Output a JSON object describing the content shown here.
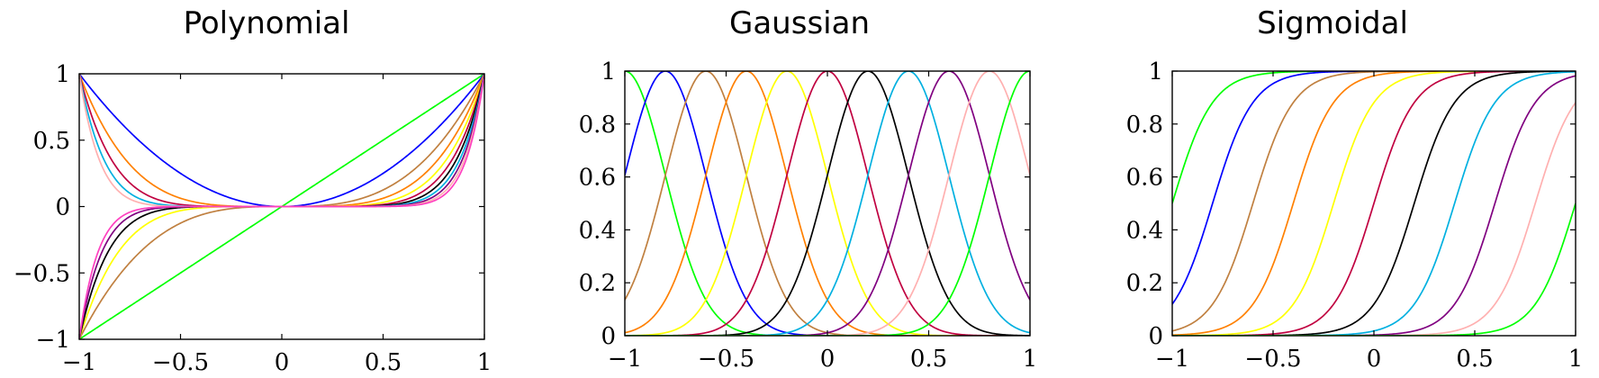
{
  "chart_data": [
    {
      "type": "line",
      "title": "Polynomial",
      "xlabel": "",
      "ylabel": "",
      "xlim": [
        -1,
        1
      ],
      "ylim": [
        -1,
        1
      ],
      "xticks": [
        "−1",
        "−0.5",
        "0",
        "0.5",
        "1"
      ],
      "yticks": [
        "−1",
        "−0.5",
        "0",
        "0.5",
        "1"
      ],
      "grid": false,
      "basis": "polynomial",
      "basis_note": "x^k for k = 1..11",
      "powers": [
        1,
        2,
        3,
        4,
        5,
        6,
        7,
        8,
        9,
        10,
        11
      ],
      "series_colors": [
        "#00ff00",
        "#0000ff",
        "#c08040",
        "#ff8000",
        "#ffff00",
        "#c00040",
        "#000000",
        "#00b0e0",
        "#800080",
        "#ffb0b0",
        "#ff40c0"
      ]
    },
    {
      "type": "line",
      "title": "Gaussian",
      "xlabel": "",
      "ylabel": "",
      "xlim": [
        -1,
        1
      ],
      "ylim": [
        0,
        1
      ],
      "xticks": [
        "−1",
        "−0.5",
        "0",
        "0.5",
        "1"
      ],
      "yticks": [
        "0",
        "0.2",
        "0.4",
        "0.6",
        "0.8",
        "1"
      ],
      "grid": false,
      "basis": "gaussian",
      "centers": [
        -1.0,
        -0.8,
        -0.6,
        -0.4,
        -0.2,
        0.0,
        0.2,
        0.4,
        0.6,
        0.8,
        1.0
      ],
      "width": 0.2,
      "series_colors": [
        "#00ff00",
        "#0000ff",
        "#c08040",
        "#ff8000",
        "#ffff00",
        "#c00040",
        "#000000",
        "#00b0e0",
        "#800080",
        "#ffb0b0",
        "#00ff00"
      ]
    },
    {
      "type": "line",
      "title": "Sigmoidal",
      "xlabel": "",
      "ylabel": "",
      "xlim": [
        -1,
        1
      ],
      "ylim": [
        0,
        1
      ],
      "xticks": [
        "−1",
        "−0.5",
        "0",
        "0.5",
        "1"
      ],
      "yticks": [
        "0",
        "0.2",
        "0.4",
        "0.6",
        "0.8",
        "1"
      ],
      "grid": false,
      "basis": "sigmoidal",
      "centers": [
        -1.0,
        -0.8,
        -0.6,
        -0.4,
        -0.2,
        0.0,
        0.2,
        0.4,
        0.6,
        0.8,
        1.0
      ],
      "scale": 0.1,
      "series_colors": [
        "#00ff00",
        "#0000ff",
        "#c08040",
        "#ff8000",
        "#ffff00",
        "#c00040",
        "#000000",
        "#00b0e0",
        "#800080",
        "#ffb0b0",
        "#00ff00"
      ]
    }
  ]
}
